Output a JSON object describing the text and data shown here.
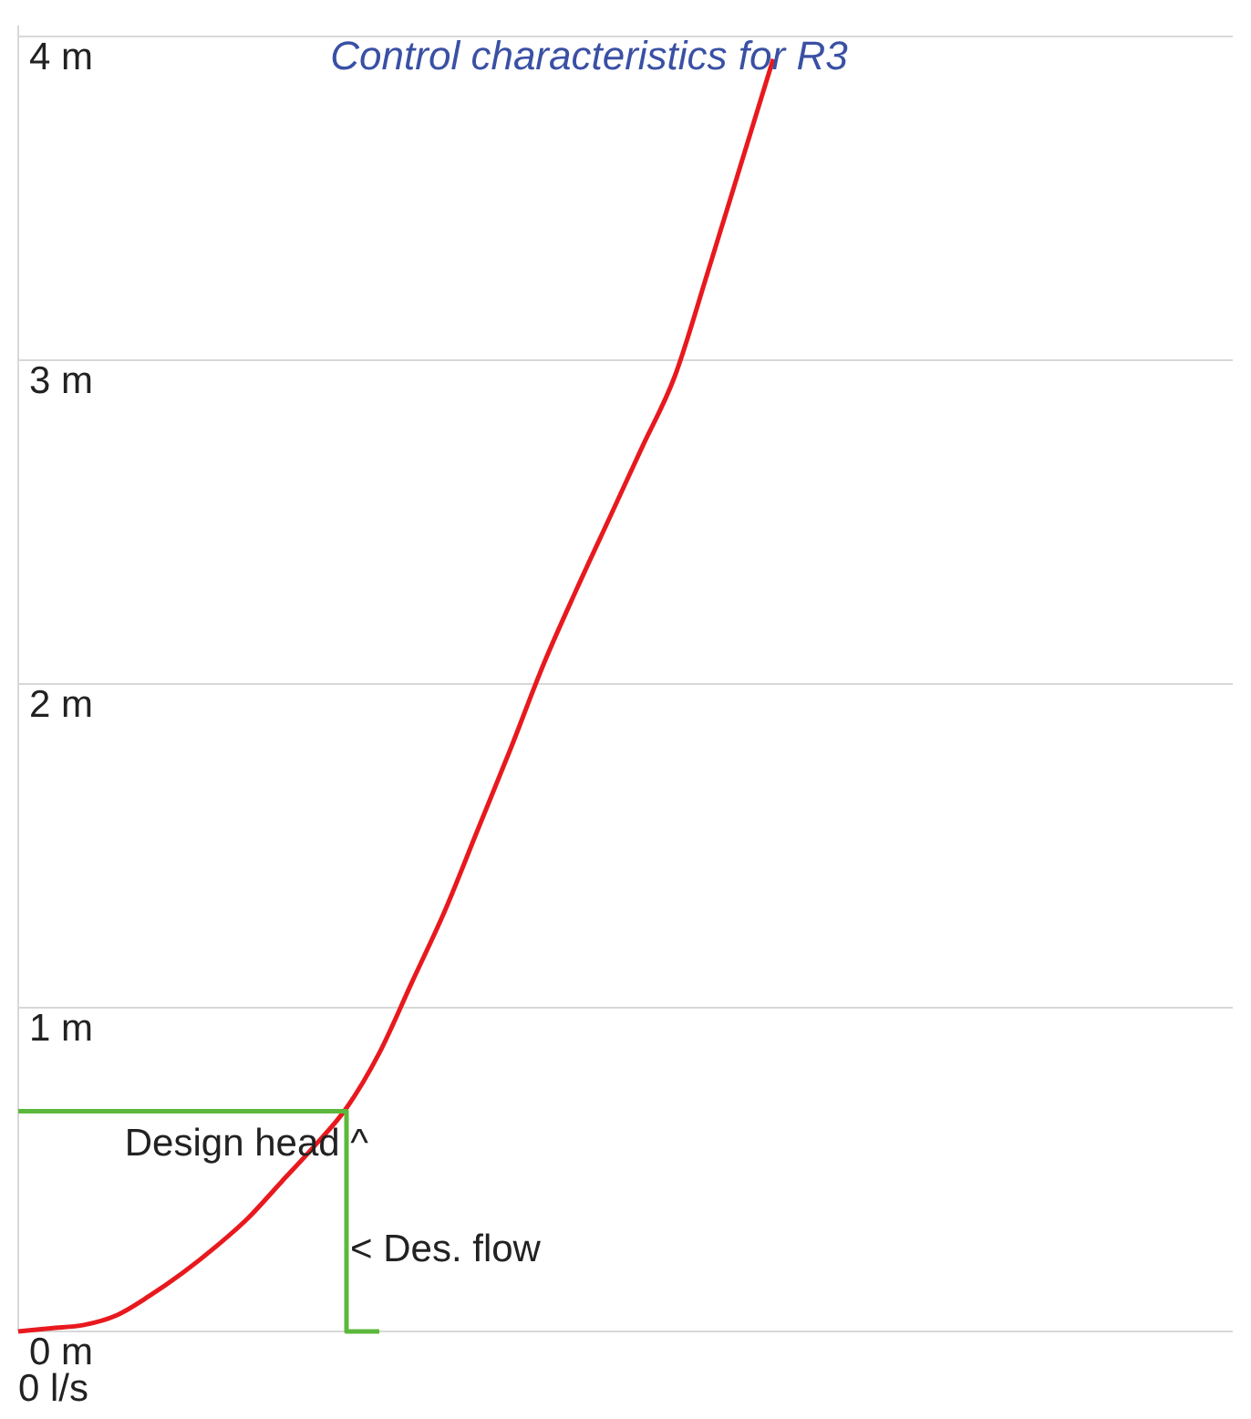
{
  "chart_data": {
    "type": "line",
    "title": "Control characteristics for R3",
    "categories": [
      null,
      null,
      null,
      null,
      null,
      null,
      null,
      null,
      null,
      null,
      null,
      null,
      null,
      null,
      null,
      null,
      null,
      null,
      null,
      null,
      null,
      null,
      null,
      null,
      null,
      null,
      null,
      null,
      null,
      null,
      null,
      null,
      null,
      null,
      null,
      null,
      null,
      null
    ],
    "series": [
      {
        "color": "#e8191e",
        "values": [
          0,
          0.01,
          0.02,
          0.05,
          0.11,
          0.18,
          0.26,
          0.35,
          0.46,
          0.57,
          0.69,
          0.86,
          1.08,
          1.3,
          1.55,
          1.8,
          2.06,
          2.29,
          2.51,
          2.73,
          2.95,
          3.27,
          3.6,
          3.93,
          null,
          null,
          null,
          null,
          null,
          null,
          null,
          null,
          null,
          null,
          null,
          null,
          null,
          null
        ]
      },
      {
        "type": "step",
        "color": "#5cb83c",
        "values": [
          0.68,
          0.68,
          0.68,
          0.68,
          0.68,
          0.68,
          0.68,
          0.68,
          0.68,
          0.68,
          0.68,
          0,
          null,
          null,
          null,
          null,
          null,
          null,
          null,
          null,
          null,
          null,
          null,
          null,
          null,
          null,
          null,
          null,
          null,
          null,
          null,
          null,
          null,
          null,
          null,
          null,
          null,
          null
        ]
      }
    ],
    "ylim": [
      0,
      4
    ],
    "yticks": [
      {
        "value": 0,
        "label": "0 m"
      },
      {
        "value": 1,
        "label": "1 m"
      },
      {
        "value": 2,
        "label": "2 m"
      },
      {
        "value": 3,
        "label": "3 m"
      },
      {
        "value": 4,
        "label": "4 m"
      }
    ],
    "xlabel": "0 l/s",
    "grid": "y",
    "annotations": [
      "Design head ^",
      "< Des. flow"
    ]
  }
}
